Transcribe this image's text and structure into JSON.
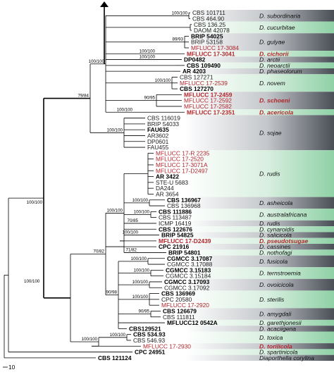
{
  "scale_label": "10",
  "root_support": "100/100",
  "clades": [
    {
      "species": "D. subordinaria",
      "red": false,
      "shade": "dark",
      "support": "100/100",
      "taxa": [
        {
          "t": "CBS 101711",
          "s": "n"
        },
        {
          "t": "CBS 464.90",
          "s": "n"
        }
      ]
    },
    {
      "species": "D. cucurbitae",
      "red": false,
      "shade": "light",
      "support": "",
      "taxa": [
        {
          "t": "CBS 136.25",
          "s": "n"
        },
        {
          "t": "DAOM 42078",
          "s": "n"
        }
      ]
    },
    {
      "species": "D. gulyae",
      "red": false,
      "shade": "dark",
      "support": "89/93",
      "taxa": [
        {
          "t": "BRIP 54025",
          "s": "b"
        },
        {
          "t": "BRIP 53158",
          "s": "n"
        },
        {
          "t": "MFLUCC 17-3084",
          "s": "r"
        }
      ]
    },
    {
      "species": "D. cichorii",
      "red": true,
      "shade": "light",
      "support": "100/100",
      "taxa": [
        {
          "t": "MFLUCC 17-3041",
          "s": "rb"
        }
      ]
    },
    {
      "species": "D. arctii",
      "red": false,
      "shade": "dark",
      "support": "100/100",
      "taxa": [
        {
          "t": "DP0482",
          "s": "b"
        }
      ]
    },
    {
      "species": "D. neoarctii",
      "red": false,
      "shade": "light",
      "support": "",
      "taxa": [
        {
          "t": "CBS 109490",
          "s": "b"
        }
      ]
    },
    {
      "species": "D. phaseolorum",
      "red": false,
      "shade": "dark",
      "support": "",
      "taxa": [
        {
          "t": "AR 4203",
          "s": "b"
        }
      ]
    },
    {
      "species": "D. novem",
      "red": false,
      "shade": "light",
      "support": "100/100",
      "taxa": [
        {
          "t": "CBS 127271",
          "s": "n"
        },
        {
          "t": "MFLUCC 17-2539",
          "s": "r"
        },
        {
          "t": "CBS 127270",
          "s": "b"
        }
      ]
    },
    {
      "species": "D. schoeni",
      "red": true,
      "shade": "dark",
      "support": "90/95",
      "taxa": [
        {
          "t": "MFLUCC 17-2459",
          "s": "rb"
        },
        {
          "t": "MFLUCC 17-2592",
          "s": "r"
        },
        {
          "t": "MFLUCC 17-2582",
          "s": "r"
        }
      ]
    },
    {
      "species": "D. acericola",
      "red": true,
      "shade": "light",
      "support": "100/100",
      "taxa": [
        {
          "t": "MFLUCC 17-2351",
          "s": "rb"
        }
      ]
    },
    {
      "species": "D. sojae",
      "red": false,
      "shade": "dark",
      "support": "100/100",
      "taxa": [
        {
          "t": "CBS 116019",
          "s": "n"
        },
        {
          "t": "BRIP 54033",
          "s": "n"
        },
        {
          "t": "FAU635",
          "s": "b"
        },
        {
          "t": "AR3602",
          "s": "n"
        },
        {
          "t": "DP0601",
          "s": "n"
        },
        {
          "t": "FAU455",
          "s": "n"
        }
      ]
    },
    {
      "species": "D. rudis",
      "red": false,
      "shade": "light",
      "support": "",
      "taxa": [
        {
          "t": "MFLUCC 17-R 2235",
          "s": "r"
        },
        {
          "t": "MFLUCC 17-2520",
          "s": "r"
        },
        {
          "t": "MFLUCC 17-3071A",
          "s": "r"
        },
        {
          "t": "MFLUCC 17-D2497",
          "s": "r"
        },
        {
          "t": "AR 3422",
          "s": "b"
        },
        {
          "t": "STE-U 5683",
          "s": "n"
        },
        {
          "t": "DA244",
          "s": "n"
        },
        {
          "t": "AR 3654",
          "s": "n"
        }
      ]
    },
    {
      "species": "D. asheicola",
      "red": false,
      "shade": "dark",
      "support": "100/100",
      "taxa": [
        {
          "t": "CBS 136967",
          "s": "b"
        },
        {
          "t": "CBS 136968",
          "s": "n"
        }
      ]
    },
    {
      "species": "D. australafricana",
      "red": false,
      "shade": "light",
      "support": "100/100",
      "taxa": [
        {
          "t": "CBS 111886",
          "s": "b"
        },
        {
          "t": "CBS 113487",
          "s": "n"
        }
      ]
    },
    {
      "species": "D. rudis",
      "red": false,
      "shade": "dark",
      "support": "70/85",
      "taxa": [
        {
          "t": "ICMP 16419",
          "s": "n"
        }
      ]
    },
    {
      "species": "D. cynaroidis",
      "red": false,
      "shade": "light",
      "support": "",
      "taxa": [
        {
          "t": "CBS 122676",
          "s": "b"
        }
      ]
    },
    {
      "species": "D. salicicola",
      "red": false,
      "shade": "dark",
      "support": "100/100",
      "taxa": [
        {
          "t": "BRIP 54825",
          "s": "b"
        }
      ]
    },
    {
      "species": "D. pseudotsugae",
      "red": true,
      "shade": "light",
      "support": "",
      "taxa": [
        {
          "t": "MFLUCC 17-D2439",
          "s": "rb"
        }
      ]
    },
    {
      "species": "D. cassines",
      "red": false,
      "shade": "dark",
      "support": "",
      "taxa": [
        {
          "t": "CPC 21916",
          "s": "b"
        }
      ]
    },
    {
      "species": "D. nothofagi",
      "red": false,
      "shade": "light",
      "support": "71/82",
      "taxa": [
        {
          "t": "BRIP 54801",
          "s": "b"
        }
      ]
    },
    {
      "species": "D. fusicola",
      "red": false,
      "shade": "dark",
      "support": "100/100",
      "taxa": [
        {
          "t": "CGMCC 3.17087",
          "s": "b"
        },
        {
          "t": "CGMCC 3.17088",
          "s": "n"
        }
      ]
    },
    {
      "species": "D. ternstroemia",
      "red": false,
      "shade": "light",
      "support": "100/100",
      "taxa": [
        {
          "t": "CGMCC 3.15183",
          "s": "b"
        },
        {
          "t": "CGMCC 3.15184",
          "s": "n"
        }
      ]
    },
    {
      "species": "D. ovoicicola",
      "red": false,
      "shade": "dark",
      "support": "100/100",
      "taxa": [
        {
          "t": "CGMCC 3.17093",
          "s": "b"
        },
        {
          "t": "CGMCC 3.17092",
          "s": "n"
        }
      ]
    },
    {
      "species": "D. sterilis",
      "red": false,
      "shade": "light",
      "support": "100/100",
      "taxa": [
        {
          "t": "CBS 136969",
          "s": "b"
        },
        {
          "t": "CPC 20580",
          "s": "n"
        },
        {
          "t": "MFLUCC 17-2920",
          "s": "r"
        }
      ]
    },
    {
      "species": "D. amygdali",
      "red": false,
      "shade": "dark",
      "support": "90/95",
      "taxa": [
        {
          "t": "CBS 126679",
          "s": "b"
        },
        {
          "t": "CBS 111811",
          "s": "n"
        }
      ]
    },
    {
      "species": "D. garethjonesii",
      "red": false,
      "shade": "light",
      "support": "",
      "taxa": [
        {
          "t": "MFLUCC12 0542A",
          "s": "b"
        }
      ]
    },
    {
      "species": "D. acaciigena",
      "red": false,
      "shade": "dark",
      "support": "",
      "taxa": [
        {
          "t": "CBS129521",
          "s": "b"
        }
      ]
    },
    {
      "species": "D. toxica",
      "red": false,
      "shade": "light",
      "support": "100/100",
      "taxa": [
        {
          "t": "CBS 534.93",
          "s": "b"
        },
        {
          "t": "CBS 546.93",
          "s": "n"
        }
      ]
    },
    {
      "species": "D. torilicola",
      "red": true,
      "shade": "dark",
      "support": "",
      "taxa": [
        {
          "t": "MFLUCC 17-2930",
          "s": "r"
        }
      ]
    },
    {
      "species": "D. spartinicola",
      "red": false,
      "shade": "light",
      "support": "",
      "taxa": [
        {
          "t": "CPC 24951",
          "s": "b"
        }
      ]
    },
    {
      "species": "Diaporthella corylina",
      "red": false,
      "shade": "dark",
      "support": "",
      "taxa": [
        {
          "t": "CBS 121124",
          "s": "b"
        }
      ]
    }
  ],
  "node_supports": [
    "79/84",
    "100/100",
    "100/100",
    "100/100",
    "70/82",
    "90/98",
    "100/100"
  ]
}
